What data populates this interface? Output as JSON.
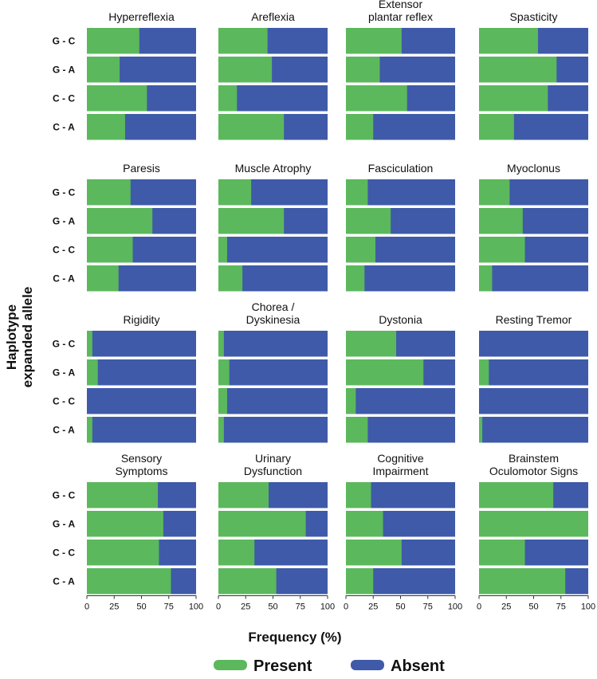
{
  "chart_data": {
    "type": "bar",
    "orientation": "horizontal",
    "stacked": true,
    "categories": [
      "G - C",
      "G - A",
      "C - C",
      "C - A"
    ],
    "ylabel_line1": "Haplotype",
    "ylabel_line2": "expanded allele",
    "xlabel": "Frequency (%)",
    "xlim": [
      0,
      100
    ],
    "xticks": [
      "0",
      "25",
      "50",
      "75",
      "100"
    ],
    "legend": {
      "placement": "bottom",
      "entries": [
        {
          "name": "Present",
          "color": "#5cb85c"
        },
        {
          "name": "Absent",
          "color": "#3f5aa8"
        }
      ]
    },
    "panels": [
      {
        "title": "Hyperreflexia",
        "present": [
          48,
          30,
          55,
          35
        ]
      },
      {
        "title": "Areflexia",
        "present": [
          45,
          49,
          17,
          60
        ]
      },
      {
        "title": "Extensor plantar reflex",
        "title_lines": [
          "Extensor",
          "plantar reflex"
        ],
        "present": [
          51,
          31,
          56,
          25
        ]
      },
      {
        "title": "Spasticity",
        "present": [
          54,
          71,
          63,
          32
        ]
      },
      {
        "title": "Paresis",
        "present": [
          40,
          60,
          42,
          29
        ]
      },
      {
        "title": "Muscle Atrophy",
        "present": [
          30,
          60,
          8,
          22
        ]
      },
      {
        "title": "Fasciculation",
        "present": [
          20,
          41,
          27,
          17
        ]
      },
      {
        "title": "Myoclonus",
        "present": [
          28,
          40,
          42,
          12
        ]
      },
      {
        "title": "Rigidity",
        "present": [
          5,
          10,
          0,
          5
        ]
      },
      {
        "title": "Chorea / Dyskinesia",
        "title_lines": [
          "Chorea /",
          "Dyskinesia"
        ],
        "present": [
          5,
          10,
          8,
          5
        ]
      },
      {
        "title": "Dystonia",
        "present": [
          46,
          71,
          9,
          20
        ]
      },
      {
        "title": "Resting Tremor",
        "present": [
          0,
          9,
          0,
          3
        ]
      },
      {
        "title": "Sensory Symptoms",
        "title_lines": [
          "Sensory",
          "Symptoms"
        ],
        "present": [
          65,
          70,
          66,
          77
        ]
      },
      {
        "title": "Urinary Dysfunction",
        "title_lines": [
          "Urinary",
          "Dysfunction"
        ],
        "present": [
          46,
          80,
          33,
          53
        ]
      },
      {
        "title": "Cognitive Impairment",
        "title_lines": [
          "Cognitive",
          "Impairment"
        ],
        "present": [
          23,
          34,
          51,
          25
        ]
      },
      {
        "title": "Brainstem Oculomotor Signs",
        "title_lines": [
          "Brainstem",
          "Oculomotor Signs"
        ],
        "present": [
          68,
          100,
          42,
          79
        ]
      }
    ]
  }
}
